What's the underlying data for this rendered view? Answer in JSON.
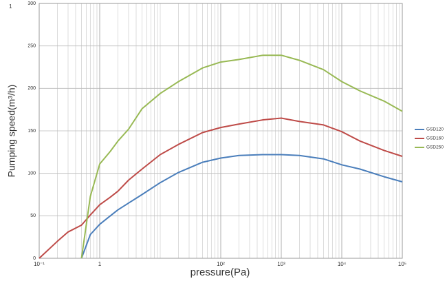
{
  "chart_data": {
    "type": "line",
    "annotation": "1",
    "x_label": "pressure(Pa)",
    "y_label": "Pumping speed(m³/h)",
    "x": [
      0.1,
      0.2,
      0.3,
      0.5,
      0.7,
      1,
      1.5,
      2,
      3,
      5,
      10,
      20,
      50,
      100,
      200,
      500,
      1000,
      2000,
      5000,
      10000,
      20000,
      50000,
      100000
    ],
    "series": [
      {
        "name": "GSD120",
        "color": "#4a7ebb",
        "values": [
          null,
          null,
          null,
          0,
          28,
          40,
          50,
          57,
          65,
          75,
          89,
          101,
          113,
          118,
          121,
          122,
          122,
          121,
          117,
          110,
          105,
          96,
          90
        ]
      },
      {
        "name": "GSD160",
        "color": "#be4b48",
        "values": [
          0,
          20,
          31,
          39,
          51,
          63,
          72,
          79,
          92,
          105,
          122,
          134,
          148,
          154,
          158,
          163,
          165,
          161,
          157,
          149,
          138,
          127,
          120
        ]
      },
      {
        "name": "GSD250",
        "color": "#98b954",
        "values": [
          null,
          null,
          null,
          0,
          73,
          111,
          126,
          138,
          152,
          176,
          194,
          208,
          224,
          231,
          234,
          239,
          239,
          233,
          222,
          208,
          197,
          185,
          173
        ]
      }
    ],
    "x_log": true,
    "xlim": [
      0.1,
      100000
    ],
    "xticks": [
      {
        "value": 0.1,
        "label": "10⁻¹"
      },
      1,
      {
        "value": 100,
        "label": "10²"
      },
      {
        "value": 1000,
        "label": "10³"
      },
      {
        "value": 10000,
        "label": "10⁴"
      },
      {
        "value": 100000,
        "label": "10⁵"
      }
    ],
    "ylim": [
      0,
      300
    ],
    "yticks": [
      0,
      50,
      100,
      150,
      200,
      250,
      300
    ],
    "grid": true,
    "minor_grid": true,
    "legend": "right"
  }
}
